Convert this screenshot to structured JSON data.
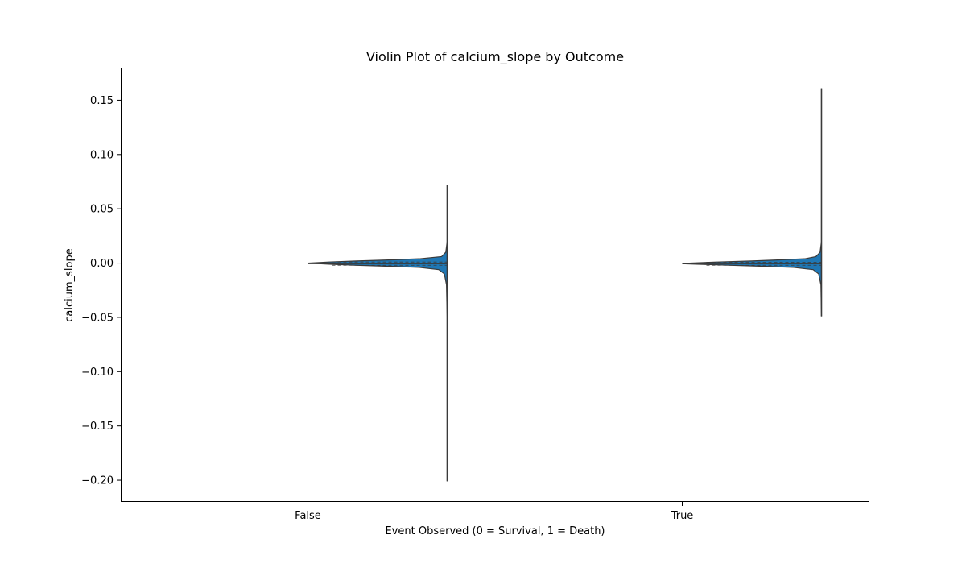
{
  "chart_data": {
    "type": "violin",
    "title": "Violin Plot of calcium_slope by Outcome",
    "xlabel": "Event Observed (0 = Survival, 1 = Death)",
    "ylabel": "calcium_slope",
    "categories": [
      "False",
      "True"
    ],
    "ylim": [
      -0.22,
      0.18
    ],
    "yticks": [
      0.15,
      0.1,
      0.05,
      0.0,
      -0.05,
      -0.1,
      -0.15,
      -0.2
    ],
    "ytick_labels": [
      "0.15",
      "0.10",
      "0.05",
      "0.00",
      "−0.05",
      "−0.10",
      "−0.15",
      "−0.20"
    ],
    "grid": false,
    "violin_color": "#1f77b4",
    "series": [
      {
        "category": "False",
        "min": -0.201,
        "max": 0.072,
        "median": -0.0005,
        "q1": -0.002,
        "q3": 0.001,
        "density": [
          [
            -0.201,
            0.0
          ],
          [
            -0.05,
            0.0
          ],
          [
            -0.02,
            0.005
          ],
          [
            -0.01,
            0.02
          ],
          [
            -0.006,
            0.06
          ],
          [
            -0.004,
            0.2
          ],
          [
            -0.003,
            0.4
          ],
          [
            -0.002,
            0.65
          ],
          [
            -0.001,
            0.85
          ],
          [
            0.0,
            1.0
          ],
          [
            0.001,
            0.85
          ],
          [
            0.002,
            0.65
          ],
          [
            0.003,
            0.4
          ],
          [
            0.004,
            0.2
          ],
          [
            0.006,
            0.04
          ],
          [
            0.01,
            0.01
          ],
          [
            0.02,
            0.0
          ],
          [
            0.072,
            0.0
          ]
        ]
      },
      {
        "category": "True",
        "min": -0.049,
        "max": 0.161,
        "median": -0.0005,
        "q1": -0.002,
        "q3": 0.0008,
        "density": [
          [
            -0.049,
            0.0
          ],
          [
            -0.02,
            0.004
          ],
          [
            -0.01,
            0.02
          ],
          [
            -0.006,
            0.06
          ],
          [
            -0.004,
            0.2
          ],
          [
            -0.003,
            0.4
          ],
          [
            -0.002,
            0.65
          ],
          [
            -0.001,
            0.9
          ],
          [
            -0.0005,
            1.0
          ],
          [
            0.0,
            0.95
          ],
          [
            0.001,
            0.75
          ],
          [
            0.002,
            0.5
          ],
          [
            0.003,
            0.3
          ],
          [
            0.004,
            0.12
          ],
          [
            0.006,
            0.04
          ],
          [
            0.01,
            0.01
          ],
          [
            0.02,
            0.0
          ],
          [
            0.161,
            0.0
          ]
        ]
      }
    ]
  }
}
